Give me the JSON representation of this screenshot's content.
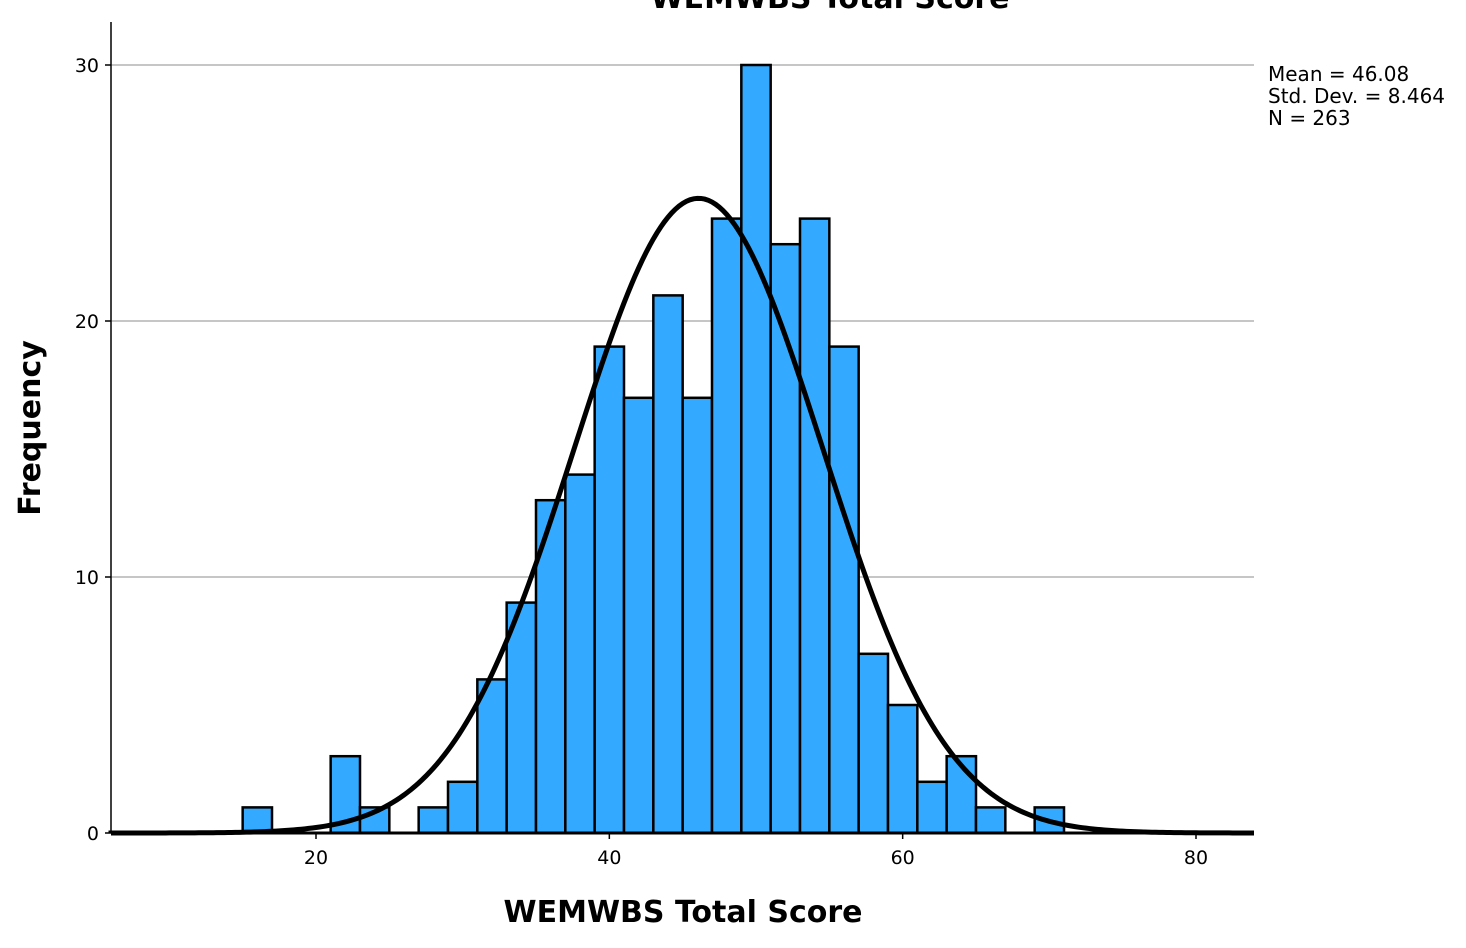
{
  "chart_data": {
    "type": "bar",
    "title": "WEMWBS Total Score",
    "xlabel": "WEMWBS Total Score",
    "ylabel": "Frequency",
    "xlim": [
      5,
      84
    ],
    "ylim": [
      0,
      30
    ],
    "x_ticks": [
      20,
      40,
      60,
      80
    ],
    "y_ticks": [
      0,
      10,
      20,
      30
    ],
    "grid": "horizontal",
    "bin_width": 2,
    "bins": [
      {
        "start": 15,
        "end": 17,
        "count": 1
      },
      {
        "start": 21,
        "end": 23,
        "count": 3
      },
      {
        "start": 23,
        "end": 25,
        "count": 1
      },
      {
        "start": 27,
        "end": 29,
        "count": 1
      },
      {
        "start": 29,
        "end": 31,
        "count": 2
      },
      {
        "start": 31,
        "end": 33,
        "count": 6
      },
      {
        "start": 33,
        "end": 35,
        "count": 9
      },
      {
        "start": 35,
        "end": 37,
        "count": 13
      },
      {
        "start": 37,
        "end": 39,
        "count": 14
      },
      {
        "start": 39,
        "end": 41,
        "count": 19
      },
      {
        "start": 41,
        "end": 43,
        "count": 17
      },
      {
        "start": 43,
        "end": 45,
        "count": 21
      },
      {
        "start": 45,
        "end": 47,
        "count": 17
      },
      {
        "start": 47,
        "end": 49,
        "count": 24
      },
      {
        "start": 49,
        "end": 51,
        "count": 30
      },
      {
        "start": 51,
        "end": 53,
        "count": 23
      },
      {
        "start": 53,
        "end": 55,
        "count": 24
      },
      {
        "start": 55,
        "end": 57,
        "count": 19
      },
      {
        "start": 57,
        "end": 59,
        "count": 7
      },
      {
        "start": 59,
        "end": 61,
        "count": 5
      },
      {
        "start": 61,
        "end": 63,
        "count": 2
      },
      {
        "start": 63,
        "end": 65,
        "count": 3
      },
      {
        "start": 65,
        "end": 67,
        "count": 1
      },
      {
        "start": 69,
        "end": 71,
        "count": 1
      }
    ],
    "normal_curve": {
      "mean": 46.08,
      "sd": 8.464,
      "n": 263
    },
    "stats_lines": [
      "Mean = 46.08",
      "Std. Dev. = 8.464",
      "N = 263"
    ],
    "colors": {
      "bar_fill": "#33aaff",
      "bar_stroke": "#000000",
      "curve": "#000000",
      "grid": "#b3b3b3"
    }
  }
}
